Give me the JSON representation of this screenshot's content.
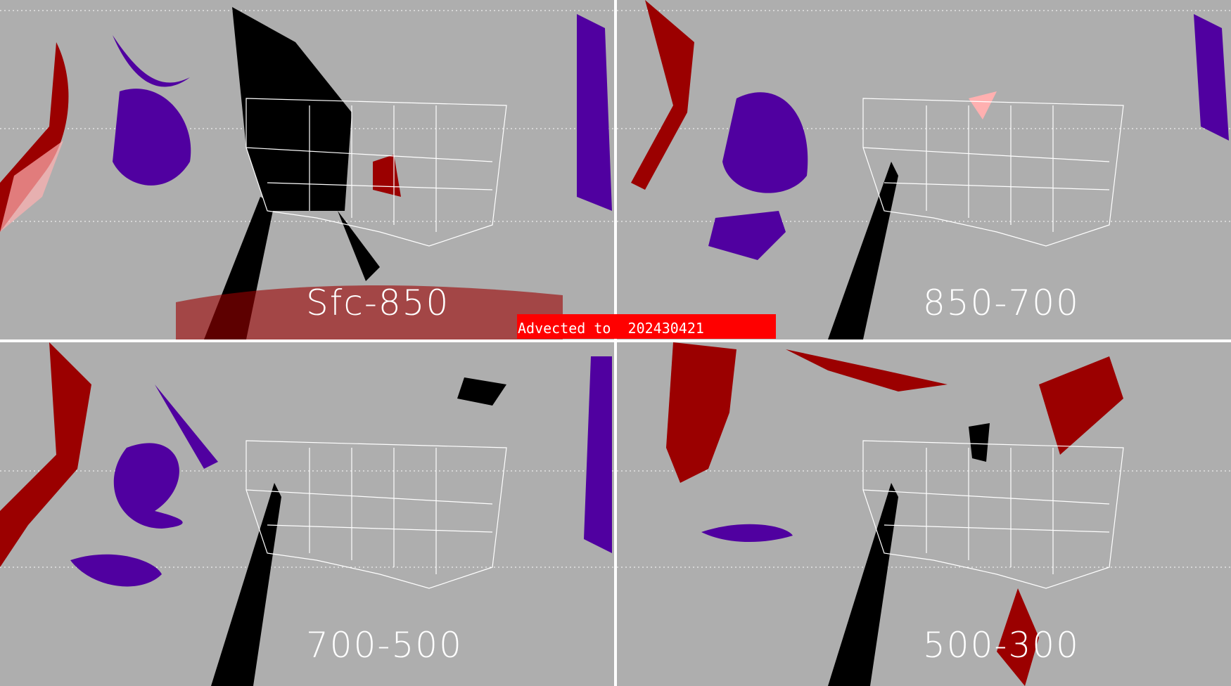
{
  "banner": {
    "text": "Advected to  202430421",
    "color": "#ff0000"
  },
  "panels": [
    {
      "label": "Sfc-850"
    },
    {
      "label": "850-700"
    },
    {
      "label": "700-500"
    },
    {
      "label": "500-300"
    }
  ],
  "colors": {
    "background": "#aeaeae",
    "dark_red": "#9b0000",
    "pink": "#ffb0b0",
    "purple": "#5000a0",
    "black": "#000000",
    "borders": "#ffffff"
  }
}
